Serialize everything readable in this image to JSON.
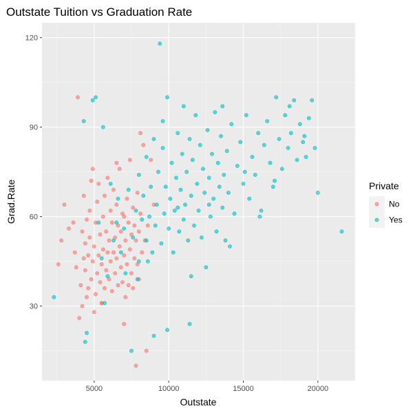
{
  "chart_data": {
    "type": "scatter",
    "title": "Outstate Tuition vs Graduation Rate",
    "xlabel": "Outstate",
    "ylabel": "Grad.Rate",
    "xlim": [
      1500,
      22500
    ],
    "ylim": [
      5,
      125
    ],
    "x_ticks": [
      5000,
      10000,
      15000,
      20000
    ],
    "x_tick_labels": [
      "5000",
      "10000",
      "15000",
      "20000"
    ],
    "y_ticks": [
      30,
      60,
      90,
      120
    ],
    "y_tick_labels": [
      "30",
      "60",
      "90",
      "120"
    ],
    "grid": true,
    "legend": {
      "title": "Private",
      "placement": "right",
      "entries": [
        {
          "label": "No",
          "color": "#F8766D"
        },
        {
          "label": "Yes",
          "color": "#00BFC4"
        }
      ]
    },
    "series": [
      {
        "name": "No",
        "color": "#F8766D",
        "points": [
          [
            2600,
            44
          ],
          [
            2800,
            52
          ],
          [
            3000,
            64
          ],
          [
            3300,
            56
          ],
          [
            3600,
            58
          ],
          [
            3700,
            48
          ],
          [
            3800,
            43
          ],
          [
            3900,
            100
          ],
          [
            4000,
            26
          ],
          [
            4100,
            37
          ],
          [
            4200,
            30
          ],
          [
            4200,
            55
          ],
          [
            4300,
            46
          ],
          [
            4300,
            67
          ],
          [
            4400,
            42
          ],
          [
            4400,
            51
          ],
          [
            4500,
            33
          ],
          [
            4500,
            59
          ],
          [
            4600,
            36
          ],
          [
            4600,
            47
          ],
          [
            4700,
            53
          ],
          [
            4700,
            62
          ],
          [
            4800,
            39
          ],
          [
            4800,
            72
          ],
          [
            4900,
            45
          ],
          [
            4900,
            76
          ],
          [
            5000,
            28
          ],
          [
            5000,
            50
          ],
          [
            5100,
            34
          ],
          [
            5100,
            58
          ],
          [
            5200,
            41
          ],
          [
            5200,
            65
          ],
          [
            5300,
            47
          ],
          [
            5300,
            71
          ],
          [
            5400,
            38
          ],
          [
            5400,
            54
          ],
          [
            5500,
            31
          ],
          [
            5500,
            44
          ],
          [
            5600,
            49
          ],
          [
            5600,
            60
          ],
          [
            5700,
            36
          ],
          [
            5700,
            67
          ],
          [
            5800,
            42
          ],
          [
            5800,
            55
          ],
          [
            5900,
            48
          ],
          [
            5900,
            73
          ],
          [
            6000,
            39
          ],
          [
            6000,
            52
          ],
          [
            6100,
            45
          ],
          [
            6100,
            62
          ],
          [
            6200,
            35
          ],
          [
            6200,
            58
          ],
          [
            6300,
            48
          ],
          [
            6300,
            69
          ],
          [
            6400,
            41
          ],
          [
            6400,
            53
          ],
          [
            6500,
            46
          ],
          [
            6500,
            64
          ],
          [
            6600,
            37
          ],
          [
            6600,
            57
          ],
          [
            6700,
            50
          ],
          [
            6700,
            76
          ],
          [
            6800,
            43
          ],
          [
            6800,
            55
          ],
          [
            6900,
            38
          ],
          [
            6900,
            61
          ],
          [
            7000,
            24
          ],
          [
            7000,
            47
          ],
          [
            7100,
            33
          ],
          [
            7100,
            52
          ],
          [
            7200,
            44
          ],
          [
            7200,
            66
          ],
          [
            7300,
            37
          ],
          [
            7300,
            58
          ],
          [
            7400,
            49
          ],
          [
            7400,
            79
          ],
          [
            7500,
            41
          ],
          [
            7500,
            54
          ],
          [
            7600,
            36
          ],
          [
            7600,
            63
          ],
          [
            7700,
            46
          ],
          [
            7700,
            57
          ],
          [
            7800,
            10
          ],
          [
            7800,
            52
          ],
          [
            7900,
            44
          ],
          [
            7900,
            68
          ],
          [
            8000,
            39
          ],
          [
            8000,
            55
          ],
          [
            8100,
            61
          ],
          [
            8200,
            48
          ],
          [
            8300,
            84
          ],
          [
            8400,
            52
          ],
          [
            8500,
            15
          ],
          [
            8600,
            57
          ],
          [
            8800,
            79
          ],
          [
            9000,
            64
          ],
          [
            5500,
            31
          ],
          [
            6500,
            78
          ],
          [
            7000,
            60
          ],
          [
            8100,
            88
          ]
        ]
      },
      {
        "name": "Yes",
        "color": "#00BFC4",
        "points": [
          [
            2300,
            33
          ],
          [
            4300,
            92
          ],
          [
            4400,
            18
          ],
          [
            4500,
            21
          ],
          [
            4900,
            99
          ],
          [
            5100,
            100
          ],
          [
            5300,
            58
          ],
          [
            5500,
            46
          ],
          [
            5600,
            90
          ],
          [
            5700,
            31
          ],
          [
            5900,
            40
          ],
          [
            6100,
            71
          ],
          [
            6300,
            52
          ],
          [
            6500,
            58
          ],
          [
            6600,
            66
          ],
          [
            6800,
            48
          ],
          [
            7000,
            56
          ],
          [
            7100,
            41
          ],
          [
            7300,
            69
          ],
          [
            7500,
            15
          ],
          [
            7600,
            53
          ],
          [
            7800,
            62
          ],
          [
            8000,
            45
          ],
          [
            8000,
            74
          ],
          [
            8200,
            59
          ],
          [
            8300,
            67
          ],
          [
            8500,
            52
          ],
          [
            8500,
            80
          ],
          [
            8700,
            60
          ],
          [
            8800,
            70
          ],
          [
            8900,
            48
          ],
          [
            9000,
            20
          ],
          [
            9000,
            86
          ],
          [
            9100,
            57
          ],
          [
            9200,
            64
          ],
          [
            9300,
            75
          ],
          [
            9400,
            118
          ],
          [
            9500,
            51
          ],
          [
            9600,
            83
          ],
          [
            9700,
            61
          ],
          [
            9800,
            70
          ],
          [
            9900,
            22
          ],
          [
            9900,
            100
          ],
          [
            10000,
            56
          ],
          [
            10100,
            66
          ],
          [
            10200,
            78
          ],
          [
            10300,
            48
          ],
          [
            10400,
            62
          ],
          [
            10500,
            73
          ],
          [
            10600,
            88
          ],
          [
            10700,
            55
          ],
          [
            10800,
            69
          ],
          [
            10900,
            81
          ],
          [
            11000,
            59
          ],
          [
            11000,
            97
          ],
          [
            11100,
            64
          ],
          [
            11200,
            75
          ],
          [
            11300,
            52
          ],
          [
            11400,
            24
          ],
          [
            11400,
            86
          ],
          [
            11500,
            67
          ],
          [
            11600,
            79
          ],
          [
            11700,
            57
          ],
          [
            11800,
            94
          ],
          [
            11900,
            71
          ],
          [
            12000,
            62
          ],
          [
            12100,
            84
          ],
          [
            12200,
            53
          ],
          [
            12300,
            76
          ],
          [
            12400,
            68
          ],
          [
            12500,
            43
          ],
          [
            12600,
            89
          ],
          [
            12700,
            73
          ],
          [
            12800,
            60
          ],
          [
            12900,
            81
          ],
          [
            13000,
            66
          ],
          [
            13100,
            95
          ],
          [
            13200,
            55
          ],
          [
            13300,
            78
          ],
          [
            13400,
            70
          ],
          [
            13500,
            87
          ],
          [
            13600,
            63
          ],
          [
            13700,
            74
          ],
          [
            13800,
            52
          ],
          [
            13900,
            82
          ],
          [
            14000,
            68
          ],
          [
            14200,
            91
          ],
          [
            14400,
            61
          ],
          [
            14600,
            77
          ],
          [
            14800,
            85
          ],
          [
            15000,
            71
          ],
          [
            15200,
            94
          ],
          [
            15400,
            66
          ],
          [
            15600,
            80
          ],
          [
            15800,
            74
          ],
          [
            16000,
            88
          ],
          [
            16200,
            62
          ],
          [
            16400,
            84
          ],
          [
            16600,
            92
          ],
          [
            16800,
            78
          ],
          [
            17000,
            70
          ],
          [
            17200,
            100
          ],
          [
            17400,
            86
          ],
          [
            17600,
            76
          ],
          [
            17800,
            94
          ],
          [
            18000,
            83
          ],
          [
            18200,
            88
          ],
          [
            18400,
            99
          ],
          [
            18600,
            79
          ],
          [
            18800,
            91
          ],
          [
            19000,
            85
          ],
          [
            19200,
            80
          ],
          [
            19400,
            93
          ],
          [
            19600,
            99
          ],
          [
            19800,
            83
          ],
          [
            20000,
            68
          ],
          [
            21600,
            55
          ],
          [
            11500,
            40
          ],
          [
            12700,
            64
          ],
          [
            14100,
            50
          ],
          [
            15100,
            75
          ],
          [
            16100,
            60
          ],
          [
            17100,
            72
          ],
          [
            18100,
            97
          ],
          [
            19100,
            87
          ],
          [
            9600,
            92
          ],
          [
            10600,
            63
          ],
          [
            13600,
            97
          ],
          [
            8600,
            45
          ],
          [
            7900,
            39
          ]
        ]
      }
    ]
  }
}
